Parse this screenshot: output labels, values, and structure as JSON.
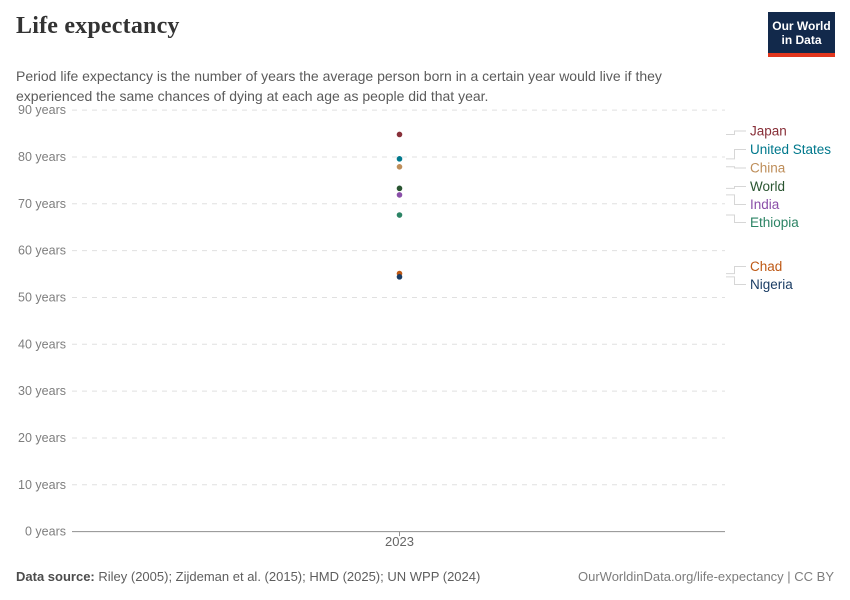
{
  "header": {
    "title": "Life expectancy",
    "subtitle": "Period life expectancy is the number of years the average person born in a certain year would live if they experienced the same chances of dying at each age as people did that year.",
    "logo": {
      "line1": "Our World",
      "line2": "in Data",
      "bg_color": "#12294B",
      "stripe_color": "#E2361D"
    }
  },
  "chart_data": {
    "type": "scatter",
    "title": "Life expectancy",
    "x_tick_label": "2023",
    "y_axis": {
      "ticks": [
        90,
        80,
        70,
        60,
        50,
        40,
        30,
        20,
        10,
        0
      ],
      "suffix": " years",
      "lim": [
        0,
        90
      ]
    },
    "grid": true,
    "legend_position": "right-labels",
    "series": [
      {
        "name": "Japan",
        "year": 2023,
        "value": 84.8,
        "color": "#883039"
      },
      {
        "name": "United States",
        "year": 2023,
        "value": 79.6,
        "color": "#00788C"
      },
      {
        "name": "China",
        "year": 2023,
        "value": 77.9,
        "color": "#BE8E5A"
      },
      {
        "name": "World",
        "year": 2023,
        "value": 73.3,
        "color": "#2A5531"
      },
      {
        "name": "India",
        "year": 2023,
        "value": 71.9,
        "color": "#8A4FA8"
      },
      {
        "name": "Ethiopia",
        "year": 2023,
        "value": 67.6,
        "color": "#2C8465"
      },
      {
        "name": "Chad",
        "year": 2023,
        "value": 55.1,
        "color": "#BE5915"
      },
      {
        "name": "Nigeria",
        "year": 2023,
        "value": 54.4,
        "color": "#1B3D64"
      }
    ]
  },
  "footer": {
    "source_label": "Data source:",
    "source_text": " Riley (2005); Zijdeman et al. (2015); HMD (2025); UN WPP (2024)",
    "credit": "OurWorldinData.org/life-expectancy | CC BY"
  }
}
